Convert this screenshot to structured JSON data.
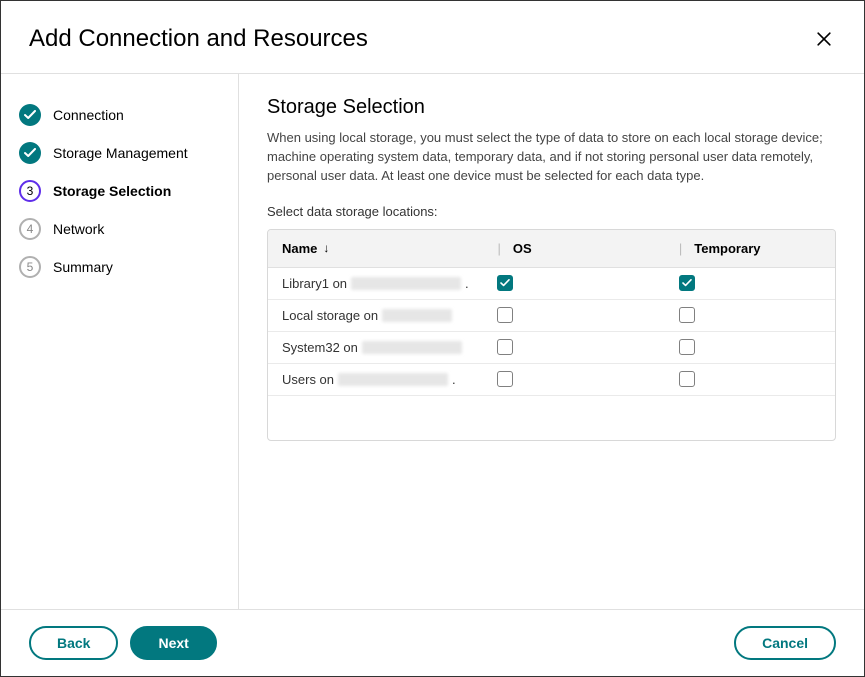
{
  "header": {
    "title": "Add Connection and Resources"
  },
  "sidebar": {
    "steps": [
      {
        "label": "Connection",
        "state": "done"
      },
      {
        "label": "Storage Management",
        "state": "done"
      },
      {
        "label": "Storage Selection",
        "state": "current",
        "number": "3"
      },
      {
        "label": "Network",
        "state": "future",
        "number": "4"
      },
      {
        "label": "Summary",
        "state": "future",
        "number": "5"
      }
    ]
  },
  "content": {
    "title": "Storage Selection",
    "description": "When using local storage, you must select the type of data to store on each local storage device; machine operating system data, temporary data, and if not storing personal user data remotely, personal user data. At least one device must be selected for each data type.",
    "subheading": "Select data storage locations:"
  },
  "table": {
    "columns": {
      "name": "Name",
      "os": "OS",
      "temporary": "Temporary"
    },
    "sort_indicator": "↓",
    "separator": "|",
    "rows": [
      {
        "prefix": "Library1 on ",
        "redacted_width": 110,
        "suffix": " .",
        "os_checked": true,
        "temp_checked": true
      },
      {
        "prefix": "Local storage on ",
        "redacted_width": 70,
        "suffix": "",
        "os_checked": false,
        "temp_checked": false
      },
      {
        "prefix": "System32 on ",
        "redacted_width": 100,
        "suffix": "",
        "os_checked": false,
        "temp_checked": false
      },
      {
        "prefix": "Users on ",
        "redacted_width": 110,
        "suffix": " .",
        "os_checked": false,
        "temp_checked": false
      }
    ]
  },
  "footer": {
    "back": "Back",
    "next": "Next",
    "cancel": "Cancel"
  },
  "colors": {
    "accent_teal": "#02787f",
    "accent_purple": "#5f2eea",
    "border_gray": "#e0e0e0",
    "text": "#333333"
  }
}
